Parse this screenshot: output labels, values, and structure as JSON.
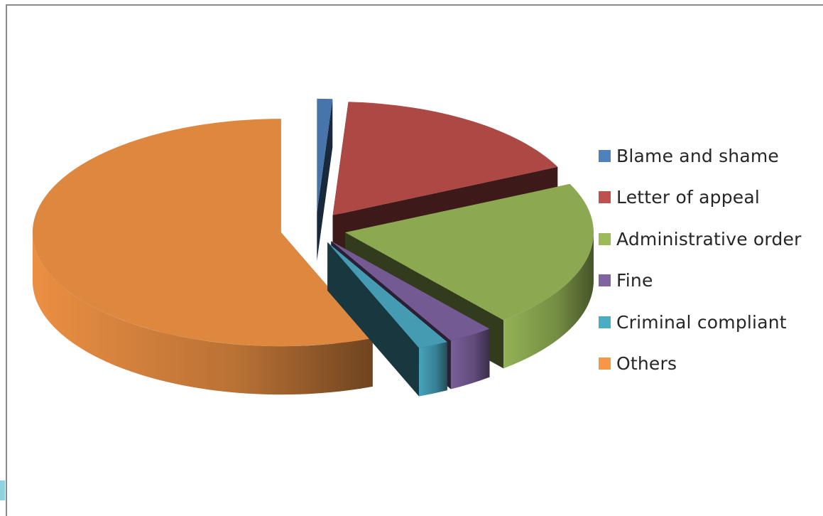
{
  "chart_data": {
    "type": "pie",
    "title": "",
    "three_d": true,
    "exploded": true,
    "legend_position": "right",
    "categories": [
      "Blame and shame",
      "Letter of appeal",
      "Administrative order",
      "Fine",
      "Criminal compliant",
      "Others"
    ],
    "values": [
      1,
      17,
      21,
      3,
      2,
      56
    ],
    "unit": "%",
    "colors": [
      "#4f81bd",
      "#c0504d",
      "#9bbb59",
      "#8064a2",
      "#4bacc6",
      "#f79646"
    ]
  }
}
